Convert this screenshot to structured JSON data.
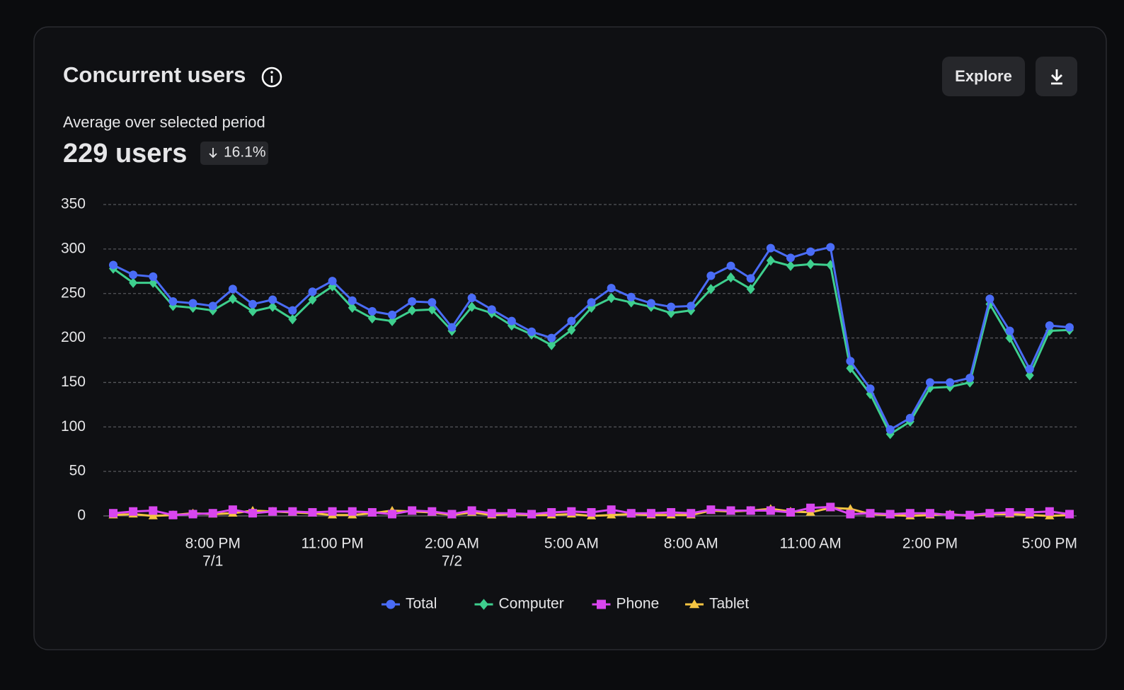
{
  "header": {
    "title": "Concurrent users",
    "subtitle": "Average over selected period",
    "metric": "229 users",
    "change": "16.1%",
    "buttons": [
      "Explore"
    ]
  },
  "chart_data": {
    "type": "line",
    "categories": [
      null,
      null,
      null,
      null,
      null,
      "8:00 PM",
      null,
      null,
      null,
      null,
      null,
      "11:00 PM",
      null,
      null,
      null,
      null,
      null,
      "2:00 AM",
      null,
      null,
      null,
      null,
      null,
      "5:00 AM",
      null,
      null,
      null,
      null,
      null,
      "8:00 AM",
      null,
      null,
      null,
      null,
      null,
      "11:00 AM",
      null,
      null,
      null,
      null,
      null,
      "2:00 PM",
      null,
      null,
      null,
      null,
      null,
      "5:00 PM",
      null
    ],
    "category_dates": [
      null,
      null,
      null,
      null,
      null,
      "7/1",
      null,
      null,
      null,
      null,
      null,
      null,
      null,
      null,
      null,
      null,
      null,
      "7/2",
      null,
      null,
      null,
      null,
      null,
      null,
      null,
      null,
      null,
      null,
      null,
      null,
      null,
      null,
      null,
      null,
      null,
      null,
      null,
      null,
      null,
      null,
      null,
      null,
      null,
      null,
      null,
      null,
      null,
      null,
      null
    ],
    "series": [
      {
        "name": "Total",
        "color": "#4a6cf7",
        "marker": "circle",
        "values": [
          282,
          271,
          269,
          241,
          239,
          236,
          255,
          238,
          243,
          231,
          252,
          264,
          242,
          230,
          226,
          241,
          240,
          212,
          245,
          232,
          219,
          207,
          200,
          219,
          240,
          256,
          246,
          239,
          235,
          236,
          270,
          281,
          267,
          301,
          290,
          297,
          302,
          174,
          143,
          97,
          110,
          150,
          150,
          155,
          244,
          208,
          165,
          214,
          212
        ]
      },
      {
        "name": "Computer",
        "color": "#3ecf8e",
        "marker": "diamond",
        "values": [
          278,
          262,
          262,
          236,
          234,
          231,
          244,
          230,
          235,
          221,
          243,
          258,
          234,
          222,
          219,
          231,
          232,
          208,
          235,
          228,
          214,
          204,
          192,
          209,
          234,
          245,
          240,
          235,
          228,
          231,
          255,
          268,
          255,
          287,
          281,
          283,
          282,
          166,
          137,
          92,
          106,
          144,
          145,
          150,
          238,
          200,
          158,
          208,
          209
        ]
      },
      {
        "name": "Phone",
        "color": "#d946ef",
        "marker": "square",
        "values": [
          3,
          5,
          6,
          1,
          2,
          3,
          7,
          3,
          5,
          5,
          4,
          5,
          5,
          4,
          2,
          6,
          5,
          2,
          6,
          3,
          3,
          2,
          4,
          5,
          4,
          7,
          3,
          3,
          4,
          3,
          7,
          6,
          6,
          6,
          4,
          9,
          10,
          2,
          3,
          2,
          3,
          3,
          1,
          1,
          3,
          4,
          4,
          5,
          2
        ]
      },
      {
        "name": "Tablet",
        "color": "#f5c542",
        "marker": "triangle",
        "values": [
          1,
          2,
          0,
          1,
          3,
          2,
          3,
          6,
          5,
          4,
          3,
          1,
          1,
          3,
          6,
          5,
          4,
          1,
          4,
          1,
          2,
          1,
          1,
          2,
          0,
          1,
          2,
          1,
          1,
          1,
          6,
          5,
          6,
          8,
          5,
          4,
          9,
          8,
          2,
          1,
          0,
          1,
          2,
          0,
          2,
          2,
          1,
          0,
          1
        ]
      }
    ],
    "ylim": [
      0,
      350
    ],
    "yticks": [
      0,
      50,
      100,
      150,
      200,
      250,
      300,
      350
    ],
    "grid": true,
    "legend": "bottom"
  }
}
